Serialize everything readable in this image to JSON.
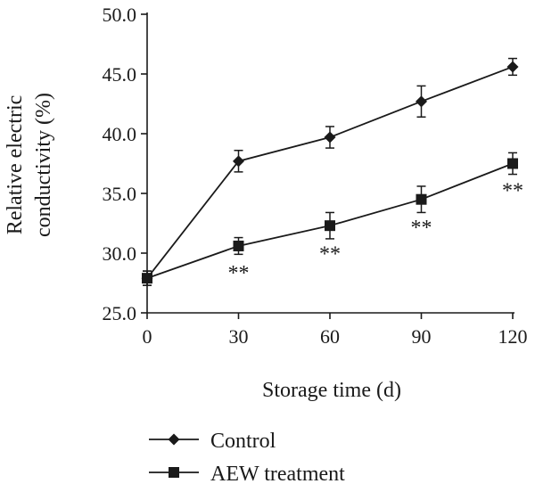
{
  "chart_data": {
    "type": "line",
    "title": "",
    "xlabel": "Storage time (d)",
    "ylabel_lines": [
      "Relative electric",
      "conductivity (%)"
    ],
    "x": [
      0,
      30,
      60,
      90,
      120
    ],
    "xlim": [
      0,
      120
    ],
    "ylim": [
      25,
      50
    ],
    "x_ticks": [
      "0",
      "30",
      "60",
      "90",
      "120"
    ],
    "y_ticks": [
      "25.0",
      "30.0",
      "35.0",
      "40.0",
      "45.0",
      "50.0"
    ],
    "grid": false,
    "legend_position": "bottom",
    "series": [
      {
        "name": "Control",
        "marker": "diamond",
        "values": [
          27.9,
          37.7,
          39.7,
          42.7,
          45.6
        ],
        "errors": [
          0.6,
          0.9,
          0.9,
          1.3,
          0.7
        ]
      },
      {
        "name": "AEW treatment",
        "marker": "square",
        "values": [
          27.9,
          30.6,
          32.3,
          34.5,
          37.5
        ],
        "errors": [
          0.6,
          0.7,
          1.1,
          1.1,
          0.9
        ]
      }
    ],
    "annotations": [
      {
        "x": 30,
        "y": 28.5,
        "text": "**"
      },
      {
        "x": 60,
        "y": 30.1,
        "text": "**"
      },
      {
        "x": 90,
        "y": 32.3,
        "text": "**"
      },
      {
        "x": 120,
        "y": 35.4,
        "text": "**"
      }
    ],
    "colors": {
      "line": "#1a1a1a"
    }
  }
}
